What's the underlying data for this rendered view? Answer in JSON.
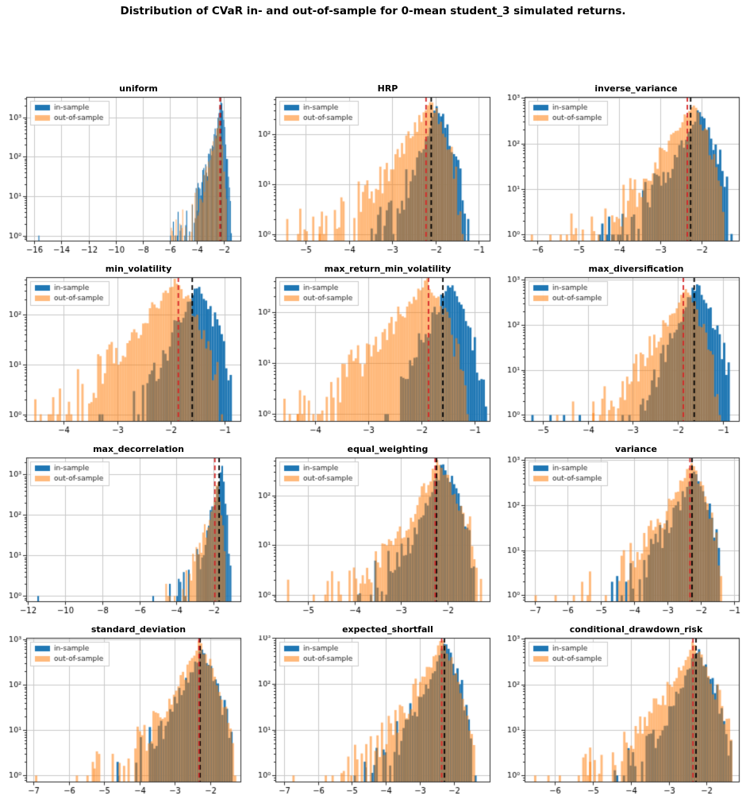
{
  "figure": {
    "title": "Distribution of CVaR in- and out-of-sample for 0-mean student_3 simulated returns."
  },
  "legend": {
    "in_label": "in-sample",
    "out_label": "out-of-sample"
  },
  "colors": {
    "in_sample": "#1f77b4",
    "out_of_sample": "#ff7f0e",
    "out_of_sample_alpha": 0.55,
    "mean_line_red": "#d62728",
    "mean_line_black": "#000000",
    "grid": "#c9c9c9",
    "spine": "#2b2b2b"
  },
  "chart_data": {
    "type": "bar",
    "subtype": "histogram-grid",
    "x_scale": "linear",
    "y_scale": "log",
    "grid_on": true,
    "legend_position": "upper-left",
    "charts": [
      {
        "title": "uniform",
        "xlim": [
          -16.6,
          -0.8
        ],
        "xticks": [
          -16,
          -14,
          -12,
          -10,
          -8,
          -6,
          -4,
          -2
        ],
        "ytick_exponents": [
          0,
          1,
          2,
          3
        ],
        "ymax_log": 3.52,
        "bin_width": 0.07,
        "vline_red": -2.3,
        "vline_black": -2.28,
        "in_sample": {
          "left": -6.2,
          "peak": -2.2,
          "right": -1.45,
          "peak_count": 2500,
          "rise": 2.2,
          "fall": 0.7,
          "outliers": [
            [
              -15.7,
              1
            ]
          ]
        },
        "out_of_sample": {
          "left": -6.0,
          "peak": -2.35,
          "right": -1.7,
          "peak_count": 1000,
          "rise": 2.2,
          "fall": 0.8,
          "outliers": [
            [
              -5.3,
              2
            ]
          ]
        }
      },
      {
        "title": "HRP",
        "xlim": [
          -5.7,
          -0.75
        ],
        "xticks": [
          -5,
          -4,
          -3,
          -2,
          -1
        ],
        "ytick_exponents": [
          0,
          1,
          2
        ],
        "ymax_log": 2.75,
        "bin_width": 0.05,
        "vline_red": -2.22,
        "vline_black": -2.1,
        "in_sample": {
          "left": -3.6,
          "peak": -2.0,
          "right": -1.3,
          "peak_count": 430,
          "rise": 1.9,
          "fall": 0.5,
          "outliers": [
            [
              -1.27,
              2
            ]
          ]
        },
        "out_of_sample": {
          "left": -5.2,
          "peak": -2.1,
          "right": -1.4,
          "peak_count": 500,
          "rise": 1.9,
          "fall": 0.55,
          "outliers": [
            [
              -5.45,
              2
            ],
            [
              -4.7,
              1
            ]
          ]
        }
      },
      {
        "title": "inverse_variance",
        "xlim": [
          -6.3,
          -1.1
        ],
        "xticks": [
          -6,
          -5,
          -4,
          -3,
          -2
        ],
        "ytick_exponents": [
          0,
          1,
          2,
          3
        ],
        "ymax_log": 3.02,
        "bin_width": 0.055,
        "vline_red": -2.35,
        "vline_black": -2.27,
        "in_sample": {
          "left": -4.55,
          "peak": -2.05,
          "right": -1.3,
          "peak_count": 550,
          "rise": 1.8,
          "fall": 0.5,
          "outliers": [
            [
              -4.5,
              1
            ],
            [
              -4.2,
              1
            ]
          ]
        },
        "out_of_sample": {
          "left": -5.3,
          "peak": -2.2,
          "right": -1.4,
          "peak_count": 700,
          "rise": 1.8,
          "fall": 0.55,
          "outliers": [
            [
              -6.15,
              1
            ],
            [
              -5.7,
              1
            ],
            [
              -5.45,
              1
            ]
          ]
        }
      },
      {
        "title": "min_volatility",
        "xlim": [
          -4.7,
          -0.7
        ],
        "xticks": [
          -4,
          -3,
          -2,
          -1
        ],
        "ytick_exponents": [
          0,
          1,
          2
        ],
        "ymax_log": 2.75,
        "bin_width": 0.042,
        "vline_red": -1.86,
        "vline_black": -1.6,
        "in_sample": {
          "left": -2.75,
          "peak": -1.48,
          "right": -0.85,
          "peak_count": 440,
          "rise": 1.1,
          "fall": 0.55,
          "outliers": [
            [
              -3.35,
              1
            ],
            [
              -3.3,
              1
            ]
          ]
        },
        "out_of_sample": {
          "left": -4.3,
          "peak": -1.9,
          "right": -1.05,
          "peak_count": 500,
          "rise": 1.3,
          "fall": 0.6,
          "outliers": [
            [
              -4.55,
              2
            ],
            [
              -4.45,
              1
            ],
            [
              -4.3,
              1
            ]
          ]
        }
      },
      {
        "title": "max_return_min_volatility",
        "xlim": [
          -4.75,
          -0.72
        ],
        "xticks": [
          -4,
          -3,
          -2,
          -1
        ],
        "ytick_exponents": [
          0,
          1,
          2
        ],
        "ymax_log": 2.68,
        "bin_width": 0.042,
        "vline_red": -1.87,
        "vline_black": -1.6,
        "in_sample": {
          "left": -2.7,
          "peak": -1.48,
          "right": -0.8,
          "peak_count": 380,
          "rise": 1.1,
          "fall": 0.55,
          "outliers": []
        },
        "out_of_sample": {
          "left": -4.35,
          "peak": -1.9,
          "right": -1.1,
          "peak_count": 420,
          "rise": 1.3,
          "fall": 0.6,
          "outliers": [
            [
              -4.6,
              2
            ],
            [
              -4.5,
              1
            ],
            [
              -4.35,
              1
            ]
          ]
        }
      },
      {
        "title": "max_diversification",
        "xlim": [
          -5.4,
          -0.65
        ],
        "xticks": [
          -5,
          -4,
          -3,
          -2,
          -1
        ],
        "ytick_exponents": [
          0,
          1,
          2,
          3
        ],
        "ymax_log": 3.06,
        "bin_width": 0.05,
        "vline_red": -1.88,
        "vline_black": -1.64,
        "in_sample": {
          "left": -3.3,
          "peak": -1.58,
          "right": -0.78,
          "peak_count": 900,
          "rise": 1.5,
          "fall": 0.6,
          "outliers": [
            [
              -5.25,
              1
            ],
            [
              -4.85,
              1
            ],
            [
              -4.55,
              1
            ],
            [
              -4.2,
              1
            ]
          ]
        },
        "out_of_sample": {
          "left": -4.1,
          "peak": -1.8,
          "right": -1.1,
          "peak_count": 660,
          "rise": 1.5,
          "fall": 0.6,
          "outliers": [
            [
              -4.7,
              1
            ],
            [
              -4.35,
              2
            ],
            [
              -3.9,
              2
            ]
          ]
        }
      },
      {
        "title": "max_decorrelation",
        "xlim": [
          -12.1,
          -0.55
        ],
        "xticks": [
          -12,
          -10,
          -8,
          -6,
          -4,
          -2
        ],
        "ytick_exponents": [
          0,
          1,
          2,
          3
        ],
        "ymax_log": 3.42,
        "bin_width": 0.09,
        "vline_red": -1.93,
        "vline_black": -1.7,
        "in_sample": {
          "left": -4.1,
          "peak": -1.55,
          "right": -1.05,
          "peak_count": 1900,
          "rise": 2.0,
          "fall": 0.7,
          "outliers": [
            [
              -11.5,
              1
            ],
            [
              -5.3,
              1
            ],
            [
              -4.4,
              2
            ]
          ]
        },
        "out_of_sample": {
          "left": -4.5,
          "peak": -1.75,
          "right": -1.3,
          "peak_count": 660,
          "rise": 1.9,
          "fall": 0.75,
          "outliers": [
            [
              -4.6,
              2
            ]
          ]
        }
      },
      {
        "title": "equal_weighting",
        "xlim": [
          -5.7,
          -1.1
        ],
        "xticks": [
          -5,
          -4,
          -3,
          -2
        ],
        "ytick_exponents": [
          0,
          1,
          2
        ],
        "ymax_log": 2.76,
        "bin_width": 0.047,
        "vline_red": -2.27,
        "vline_black": -2.24,
        "in_sample": {
          "left": -4.0,
          "peak": -2.1,
          "right": -1.4,
          "peak_count": 430,
          "rise": 1.8,
          "fall": 0.5,
          "outliers": [
            [
              -3.95,
              1
            ]
          ]
        },
        "out_of_sample": {
          "left": -4.6,
          "peak": -2.2,
          "right": -1.3,
          "peak_count": 500,
          "rise": 1.8,
          "fall": 0.55,
          "outliers": [
            [
              -5.45,
              2
            ],
            [
              -4.9,
              1
            ],
            [
              -4.65,
              1
            ]
          ]
        }
      },
      {
        "title": "variance",
        "xlim": [
          -7.3,
          -0.85
        ],
        "xticks": [
          -7,
          -6,
          -5,
          -4,
          -3,
          -2,
          -1
        ],
        "ytick_exponents": [
          0,
          1,
          2,
          3
        ],
        "ymax_log": 3.06,
        "bin_width": 0.068,
        "vline_red": -2.32,
        "vline_black": -2.26,
        "in_sample": {
          "left": -4.75,
          "peak": -2.2,
          "right": -1.35,
          "peak_count": 550,
          "rise": 1.6,
          "fall": 0.5,
          "outliers": [
            [
              -4.7,
              2
            ]
          ]
        },
        "out_of_sample": {
          "left": -5.5,
          "peak": -2.3,
          "right": -1.3,
          "peak_count": 850,
          "rise": 1.7,
          "fall": 0.55,
          "outliers": [
            [
              -7.0,
              1
            ],
            [
              -6.4,
              1
            ],
            [
              -5.85,
              1
            ],
            [
              -5.6,
              2
            ]
          ]
        }
      },
      {
        "title": "standard_deviation",
        "xlim": [
          -7.2,
          -1.15
        ],
        "xticks": [
          -7,
          -6,
          -5,
          -4,
          -3,
          -2
        ],
        "ytick_exponents": [
          0,
          1,
          2,
          3
        ],
        "ymax_log": 3.03,
        "bin_width": 0.064,
        "vline_red": -2.32,
        "vline_black": -2.29,
        "in_sample": {
          "left": -4.7,
          "peak": -2.25,
          "right": -1.35,
          "peak_count": 550,
          "rise": 1.6,
          "fall": 0.5,
          "outliers": [
            [
              -4.65,
              2
            ]
          ]
        },
        "out_of_sample": {
          "left": -5.3,
          "peak": -2.3,
          "right": -1.3,
          "peak_count": 850,
          "rise": 1.7,
          "fall": 0.55,
          "outliers": [
            [
              -6.95,
              1
            ],
            [
              -5.8,
              1
            ],
            [
              -5.5,
              1
            ],
            [
              -5.35,
              2
            ]
          ]
        }
      },
      {
        "title": "expected_shortfall",
        "xlim": [
          -7.25,
          -0.95
        ],
        "xticks": [
          -7,
          -6,
          -5,
          -4,
          -3,
          -2
        ],
        "ytick_exponents": [
          0,
          1,
          2,
          3
        ],
        "ymax_log": 3.0,
        "bin_width": 0.066,
        "vline_red": -2.36,
        "vline_black": -2.28,
        "in_sample": {
          "left": -4.7,
          "peak": -2.3,
          "right": -1.4,
          "peak_count": 800,
          "rise": 1.6,
          "fall": 0.5,
          "outliers": [
            [
              -4.65,
              2
            ],
            [
              -4.95,
              1
            ]
          ]
        },
        "out_of_sample": {
          "left": -5.6,
          "peak": -2.35,
          "right": -1.35,
          "peak_count": 900,
          "rise": 1.7,
          "fall": 0.55,
          "outliers": [
            [
              -6.75,
              1
            ],
            [
              -5.8,
              1
            ],
            [
              -5.05,
              1
            ]
          ]
        }
      },
      {
        "title": "conditional_drawdown_risk",
        "xlim": [
          -6.8,
          -1.15
        ],
        "xticks": [
          -6,
          -5,
          -4,
          -3,
          -2
        ],
        "ytick_exponents": [
          0,
          1,
          2,
          3
        ],
        "ymax_log": 3.02,
        "bin_width": 0.06,
        "vline_red": -2.36,
        "vline_black": -2.28,
        "in_sample": {
          "left": -4.45,
          "peak": -2.25,
          "right": -1.35,
          "peak_count": 600,
          "rise": 1.6,
          "fall": 0.5,
          "outliers": [
            [
              -4.4,
              1
            ]
          ]
        },
        "out_of_sample": {
          "left": -5.4,
          "peak": -2.35,
          "right": -1.3,
          "peak_count": 800,
          "rise": 1.7,
          "fall": 0.55,
          "outliers": [
            [
              -6.55,
              1
            ],
            [
              -6.2,
              1
            ],
            [
              -5.9,
              1
            ],
            [
              -5.1,
              2
            ]
          ]
        }
      }
    ]
  }
}
